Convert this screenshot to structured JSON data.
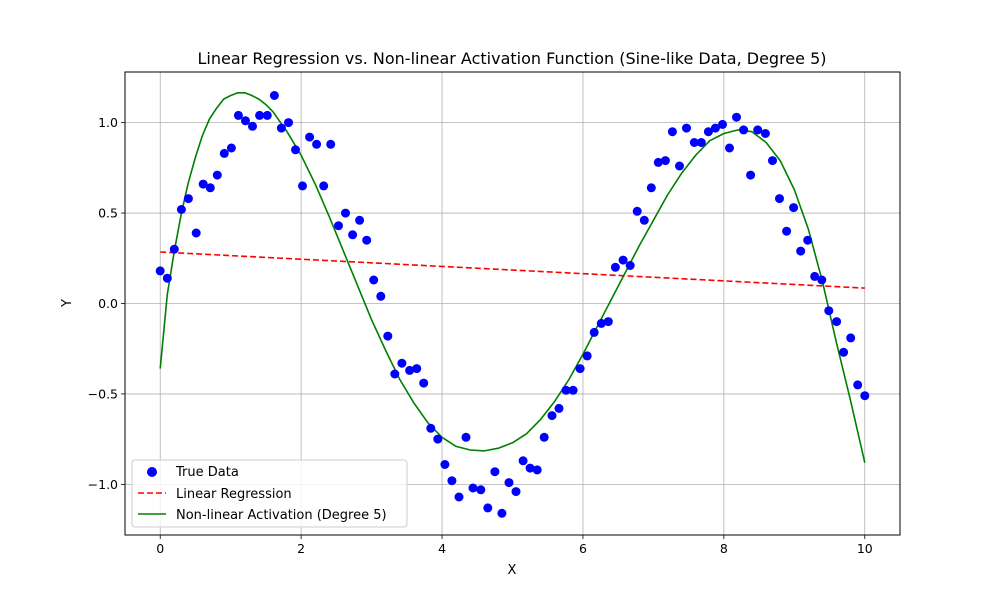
{
  "chart_data": {
    "type": "scatter",
    "title": "Linear Regression vs. Non-linear Activation Function (Sine-like Data, Degree 5)",
    "xlabel": "X",
    "ylabel": "Y",
    "xlim": [
      -0.5,
      10.5
    ],
    "ylim": [
      -1.28,
      1.28
    ],
    "xticks": [
      0,
      2,
      4,
      6,
      8,
      10
    ],
    "xtick_labels": [
      "0",
      "2",
      "4",
      "6",
      "8",
      "10"
    ],
    "yticks": [
      -1.0,
      -0.5,
      0.0,
      0.5,
      1.0
    ],
    "ytick_labels": [
      "−1.0",
      "−0.5",
      "0.0",
      "0.5",
      "1.0"
    ],
    "grid": true,
    "legend_position": "lower-left",
    "series": [
      {
        "name": "True Data",
        "kind": "scatter",
        "color": "#0000ff",
        "points": [
          [
            0.0,
            0.18
          ],
          [
            0.1,
            0.14
          ],
          [
            0.2,
            0.3
          ],
          [
            0.3,
            0.52
          ],
          [
            0.4,
            0.58
          ],
          [
            0.51,
            0.39
          ],
          [
            0.61,
            0.66
          ],
          [
            0.71,
            0.64
          ],
          [
            0.81,
            0.71
          ],
          [
            0.91,
            0.83
          ],
          [
            1.01,
            0.86
          ],
          [
            1.11,
            1.04
          ],
          [
            1.21,
            1.01
          ],
          [
            1.31,
            0.98
          ],
          [
            1.41,
            1.04
          ],
          [
            1.52,
            1.04
          ],
          [
            1.62,
            1.15
          ],
          [
            1.72,
            0.97
          ],
          [
            1.82,
            1.0
          ],
          [
            1.92,
            0.85
          ],
          [
            2.02,
            0.65
          ],
          [
            2.12,
            0.92
          ],
          [
            2.22,
            0.88
          ],
          [
            2.32,
            0.65
          ],
          [
            2.42,
            0.88
          ],
          [
            2.53,
            0.43
          ],
          [
            2.63,
            0.5
          ],
          [
            2.73,
            0.38
          ],
          [
            2.83,
            0.46
          ],
          [
            2.93,
            0.35
          ],
          [
            3.03,
            0.13
          ],
          [
            3.13,
            0.04
          ],
          [
            3.23,
            -0.18
          ],
          [
            3.33,
            -0.39
          ],
          [
            3.43,
            -0.33
          ],
          [
            3.54,
            -0.37
          ],
          [
            3.64,
            -0.36
          ],
          [
            3.74,
            -0.44
          ],
          [
            3.84,
            -0.69
          ],
          [
            3.94,
            -0.75
          ],
          [
            4.04,
            -0.89
          ],
          [
            4.14,
            -0.98
          ],
          [
            4.24,
            -1.07
          ],
          [
            4.34,
            -0.74
          ],
          [
            4.44,
            -1.02
          ],
          [
            4.55,
            -1.03
          ],
          [
            4.65,
            -1.13
          ],
          [
            4.75,
            -0.93
          ],
          [
            4.85,
            -1.16
          ],
          [
            4.95,
            -0.99
          ],
          [
            5.05,
            -1.04
          ],
          [
            5.15,
            -0.87
          ],
          [
            5.25,
            -0.91
          ],
          [
            5.35,
            -0.92
          ],
          [
            5.45,
            -0.74
          ],
          [
            5.56,
            -0.62
          ],
          [
            5.66,
            -0.58
          ],
          [
            5.76,
            -0.48
          ],
          [
            5.86,
            -0.48
          ],
          [
            5.96,
            -0.36
          ],
          [
            6.06,
            -0.29
          ],
          [
            6.16,
            -0.16
          ],
          [
            6.26,
            -0.11
          ],
          [
            6.36,
            -0.1
          ],
          [
            6.46,
            0.2
          ],
          [
            6.57,
            0.24
          ],
          [
            6.67,
            0.21
          ],
          [
            6.77,
            0.51
          ],
          [
            6.87,
            0.46
          ],
          [
            6.97,
            0.64
          ],
          [
            7.07,
            0.78
          ],
          [
            7.17,
            0.79
          ],
          [
            7.27,
            0.95
          ],
          [
            7.37,
            0.76
          ],
          [
            7.47,
            0.97
          ],
          [
            7.58,
            0.89
          ],
          [
            7.68,
            0.89
          ],
          [
            7.78,
            0.95
          ],
          [
            7.88,
            0.97
          ],
          [
            7.98,
            0.99
          ],
          [
            8.08,
            0.86
          ],
          [
            8.18,
            1.03
          ],
          [
            8.28,
            0.96
          ],
          [
            8.38,
            0.71
          ],
          [
            8.48,
            0.96
          ],
          [
            8.59,
            0.94
          ],
          [
            8.69,
            0.79
          ],
          [
            8.79,
            0.58
          ],
          [
            8.89,
            0.4
          ],
          [
            8.99,
            0.53
          ],
          [
            9.09,
            0.29
          ],
          [
            9.19,
            0.35
          ],
          [
            9.29,
            0.15
          ],
          [
            9.39,
            0.13
          ],
          [
            9.49,
            -0.04
          ],
          [
            9.6,
            -0.1
          ],
          [
            9.7,
            -0.27
          ],
          [
            9.8,
            -0.19
          ],
          [
            9.9,
            -0.45
          ],
          [
            10.0,
            -0.51
          ]
        ]
      },
      {
        "name": "Linear Regression",
        "kind": "line",
        "style": "dashed",
        "color": "#ff0000",
        "points": [
          [
            0.0,
            0.285
          ],
          [
            10.0,
            0.085
          ]
        ]
      },
      {
        "name": "Non-linear Activation (Degree 5)",
        "kind": "line",
        "style": "solid",
        "color": "#008000",
        "points": [
          [
            0.0,
            -0.36
          ],
          [
            0.1,
            0.05
          ],
          [
            0.2,
            0.29
          ],
          [
            0.3,
            0.5
          ],
          [
            0.4,
            0.67
          ],
          [
            0.5,
            0.81
          ],
          [
            0.6,
            0.93
          ],
          [
            0.7,
            1.02
          ],
          [
            0.8,
            1.08
          ],
          [
            0.9,
            1.13
          ],
          [
            1.0,
            1.15
          ],
          [
            1.1,
            1.165
          ],
          [
            1.2,
            1.165
          ],
          [
            1.3,
            1.15
          ],
          [
            1.4,
            1.13
          ],
          [
            1.5,
            1.1
          ],
          [
            1.6,
            1.06
          ],
          [
            1.8,
            0.95
          ],
          [
            2.0,
            0.82
          ],
          [
            2.2,
            0.66
          ],
          [
            2.4,
            0.48
          ],
          [
            2.6,
            0.29
          ],
          [
            2.8,
            0.1
          ],
          [
            3.0,
            -0.09
          ],
          [
            3.2,
            -0.26
          ],
          [
            3.4,
            -0.42
          ],
          [
            3.6,
            -0.55
          ],
          [
            3.8,
            -0.66
          ],
          [
            4.0,
            -0.74
          ],
          [
            4.2,
            -0.79
          ],
          [
            4.4,
            -0.81
          ],
          [
            4.6,
            -0.815
          ],
          [
            4.8,
            -0.8
          ],
          [
            5.0,
            -0.77
          ],
          [
            5.2,
            -0.72
          ],
          [
            5.4,
            -0.64
          ],
          [
            5.6,
            -0.54
          ],
          [
            5.8,
            -0.42
          ],
          [
            6.0,
            -0.28
          ],
          [
            6.2,
            -0.13
          ],
          [
            6.4,
            0.02
          ],
          [
            6.6,
            0.17
          ],
          [
            6.8,
            0.32
          ],
          [
            7.0,
            0.46
          ],
          [
            7.2,
            0.6
          ],
          [
            7.4,
            0.72
          ],
          [
            7.6,
            0.82
          ],
          [
            7.8,
            0.9
          ],
          [
            8.0,
            0.94
          ],
          [
            8.2,
            0.96
          ],
          [
            8.4,
            0.95
          ],
          [
            8.6,
            0.89
          ],
          [
            8.8,
            0.79
          ],
          [
            9.0,
            0.63
          ],
          [
            9.2,
            0.41
          ],
          [
            9.4,
            0.12
          ],
          [
            9.6,
            -0.22
          ],
          [
            9.8,
            -0.54
          ],
          [
            10.0,
            -0.88
          ]
        ]
      }
    ]
  }
}
